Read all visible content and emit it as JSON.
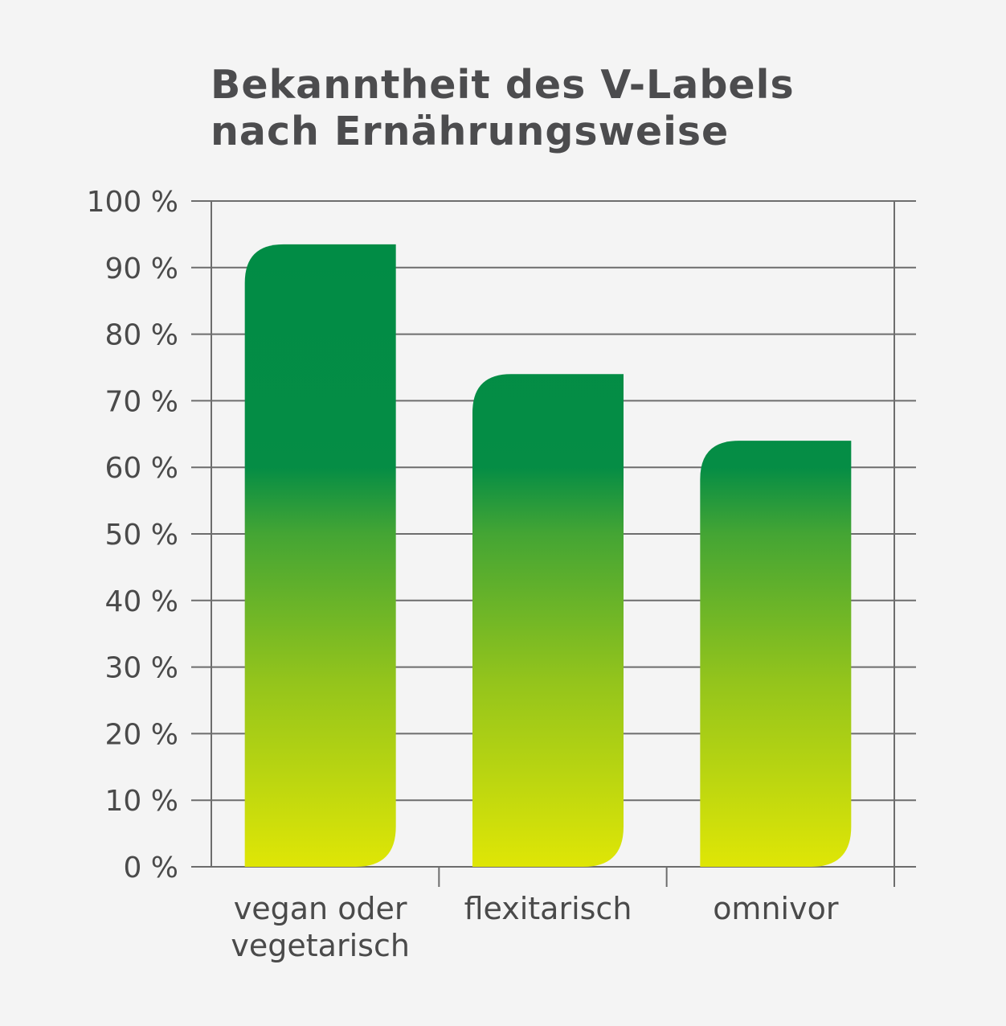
{
  "chart_data": {
    "type": "bar",
    "title": [
      "Bekanntheit des V-Labels",
      "nach Ernährungsweise"
    ],
    "categories": [
      [
        "vegan oder",
        "vegetarisch"
      ],
      [
        "flexitarisch"
      ],
      [
        "omnivor"
      ]
    ],
    "values": [
      93.5,
      74,
      64
    ],
    "ylim": [
      0,
      100
    ],
    "yticks": [
      0,
      10,
      20,
      30,
      40,
      50,
      60,
      70,
      80,
      90,
      100
    ],
    "ytick_labels": [
      "0 %",
      "10 %",
      "20 %",
      "30 %",
      "40 %",
      "50 %",
      "60 %",
      "70 %",
      "80 %",
      "90 %",
      "100 %"
    ],
    "grid": true,
    "bar_gradient": {
      "top": "#008c45",
      "bottom": "#dfe606"
    }
  }
}
